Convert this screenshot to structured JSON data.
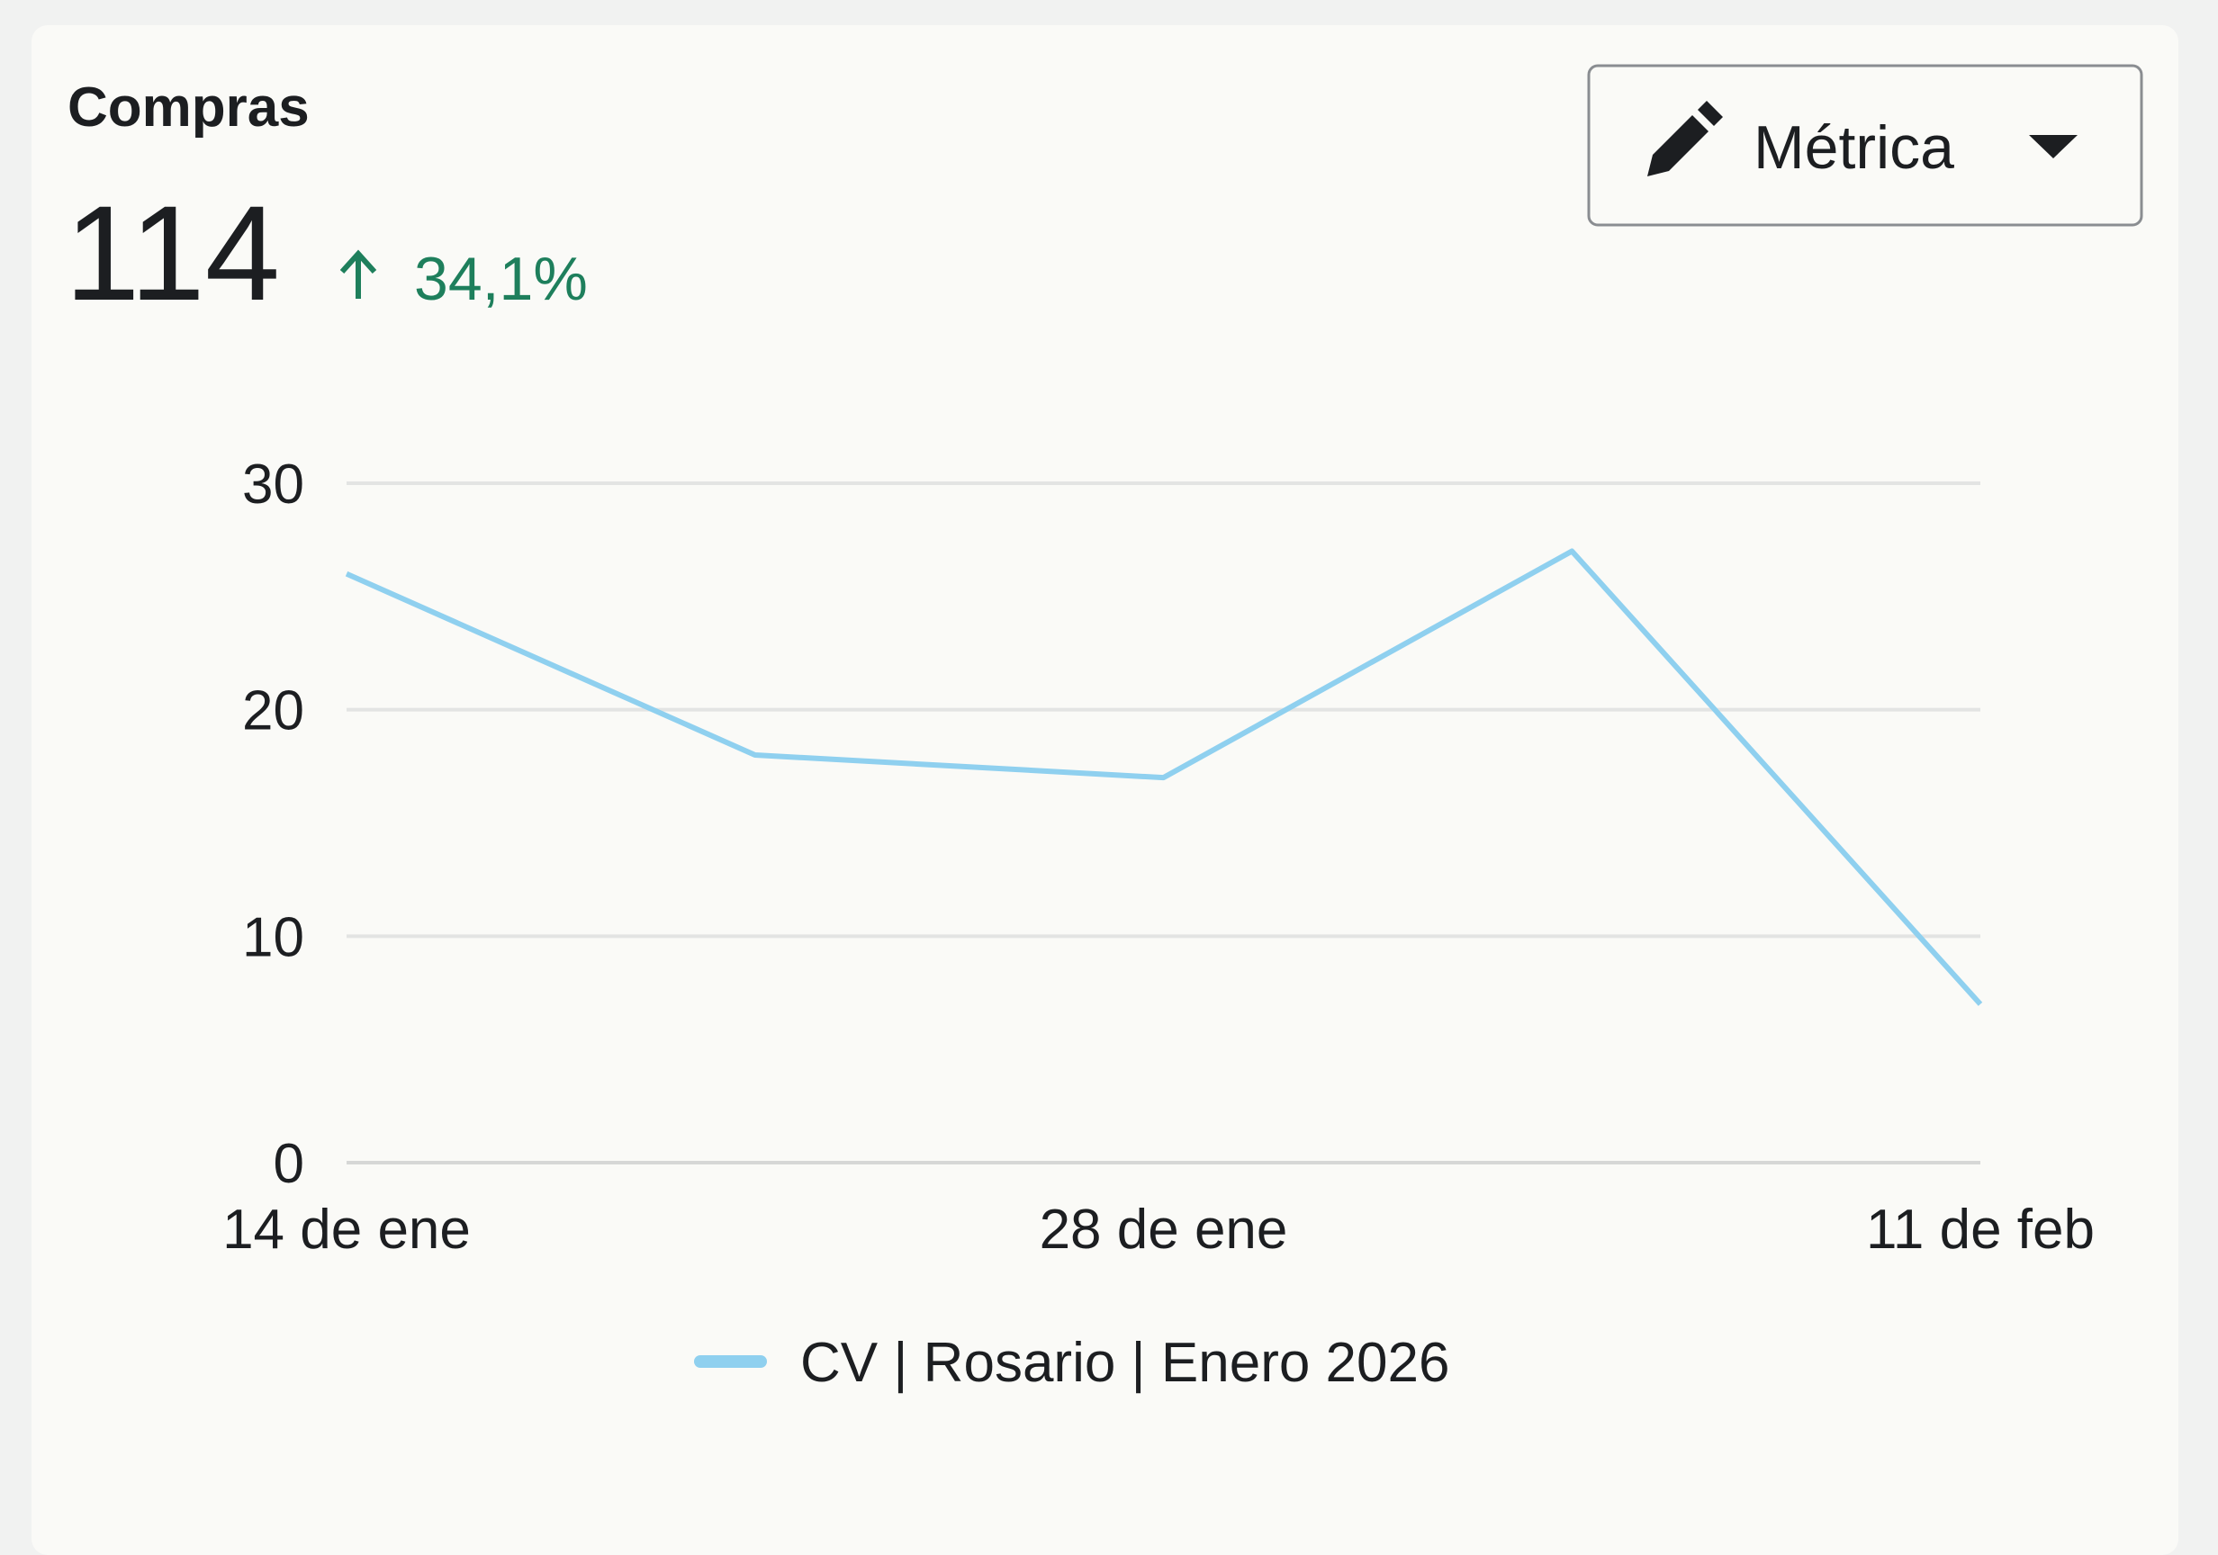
{
  "header": {
    "title": "Compras",
    "value": "114",
    "change": "34,1%"
  },
  "button": {
    "label": "Métrica"
  },
  "chart_data": {
    "type": "line",
    "categories": [
      "14 de ene",
      null,
      "28 de ene",
      null,
      "11 de feb"
    ],
    "series": [
      {
        "name": "CV | Rosario | Enero 2026",
        "color": "#8fd0ef",
        "values": [
          26,
          18,
          17,
          27,
          7
        ]
      }
    ],
    "ylim": [
      0,
      30
    ],
    "yticks": [
      0,
      10,
      20,
      30
    ],
    "grid": true
  }
}
